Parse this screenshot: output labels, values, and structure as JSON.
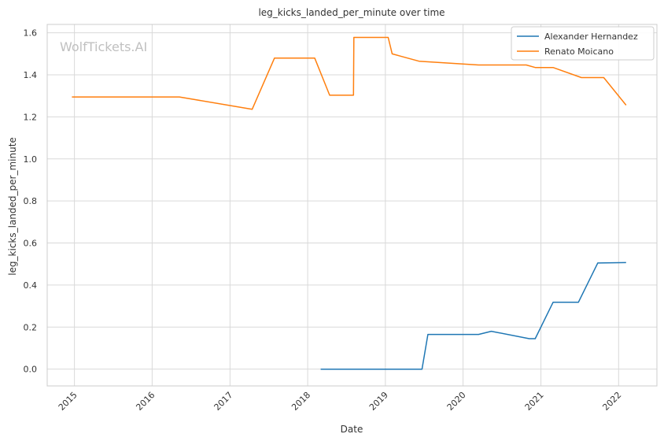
{
  "chart_data": {
    "type": "line",
    "title": "leg_kicks_landed_per_minute over time",
    "xlabel": "Date",
    "ylabel": "leg_kicks_landed_per_minute",
    "watermark": "WolfTickets.AI",
    "x_axis": {
      "type": "date",
      "range": [
        "2014-08-26",
        "2022-06-30"
      ],
      "ticks": [
        {
          "date": "2015-01-01",
          "label": "2015"
        },
        {
          "date": "2016-01-01",
          "label": "2016"
        },
        {
          "date": "2017-01-01",
          "label": "2017"
        },
        {
          "date": "2018-01-01",
          "label": "2018"
        },
        {
          "date": "2019-01-01",
          "label": "2019"
        },
        {
          "date": "2020-01-01",
          "label": "2020"
        },
        {
          "date": "2021-01-01",
          "label": "2021"
        },
        {
          "date": "2022-01-01",
          "label": "2022"
        }
      ]
    },
    "ylim": [
      -0.08,
      1.64
    ],
    "yticks": [
      {
        "value": 0.0,
        "label": "0.0"
      },
      {
        "value": 0.2,
        "label": "0.2"
      },
      {
        "value": 0.4,
        "label": "0.4"
      },
      {
        "value": 0.6,
        "label": "0.6"
      },
      {
        "value": 0.8,
        "label": "0.8"
      },
      {
        "value": 1.0,
        "label": "1.0"
      },
      {
        "value": 1.2,
        "label": "1.2"
      },
      {
        "value": 1.4,
        "label": "1.4"
      },
      {
        "value": 1.6,
        "label": "1.6"
      }
    ],
    "grid": true,
    "legend_position": "top-right",
    "series": [
      {
        "name": "Alexander Hernandez",
        "color": "#1f77b4",
        "points": [
          {
            "x": "2018-03-03",
            "y": 0.0
          },
          {
            "x": "2019-06-22",
            "y": 0.0
          },
          {
            "x": "2019-07-20",
            "y": 0.165
          },
          {
            "x": "2020-03-14",
            "y": 0.165
          },
          {
            "x": "2020-05-13",
            "y": 0.18
          },
          {
            "x": "2020-11-07",
            "y": 0.145
          },
          {
            "x": "2020-12-05",
            "y": 0.145
          },
          {
            "x": "2021-02-27",
            "y": 0.318
          },
          {
            "x": "2021-06-26",
            "y": 0.318
          },
          {
            "x": "2021-09-25",
            "y": 0.505
          },
          {
            "x": "2022-02-05",
            "y": 0.507
          }
        ]
      },
      {
        "name": "Renato Moicano",
        "color": "#ff7f0e",
        "points": [
          {
            "x": "2014-12-20",
            "y": 1.295
          },
          {
            "x": "2016-05-08",
            "y": 1.295
          },
          {
            "x": "2017-04-15",
            "y": 1.236
          },
          {
            "x": "2017-07-29",
            "y": 1.48
          },
          {
            "x": "2018-02-03",
            "y": 1.48
          },
          {
            "x": "2018-04-14",
            "y": 1.303
          },
          {
            "x": "2018-08-04",
            "y": 1.303
          },
          {
            "x": "2018-08-06",
            "y": 1.578
          },
          {
            "x": "2019-01-14",
            "y": 1.578
          },
          {
            "x": "2019-02-02",
            "y": 1.5
          },
          {
            "x": "2019-06-08",
            "y": 1.465
          },
          {
            "x": "2020-03-14",
            "y": 1.447
          },
          {
            "x": "2020-10-24",
            "y": 1.447
          },
          {
            "x": "2020-12-05",
            "y": 1.435
          },
          {
            "x": "2021-02-27",
            "y": 1.435
          },
          {
            "x": "2021-07-10",
            "y": 1.387
          },
          {
            "x": "2021-10-23",
            "y": 1.387
          },
          {
            "x": "2022-02-05",
            "y": 1.256
          }
        ]
      }
    ]
  }
}
